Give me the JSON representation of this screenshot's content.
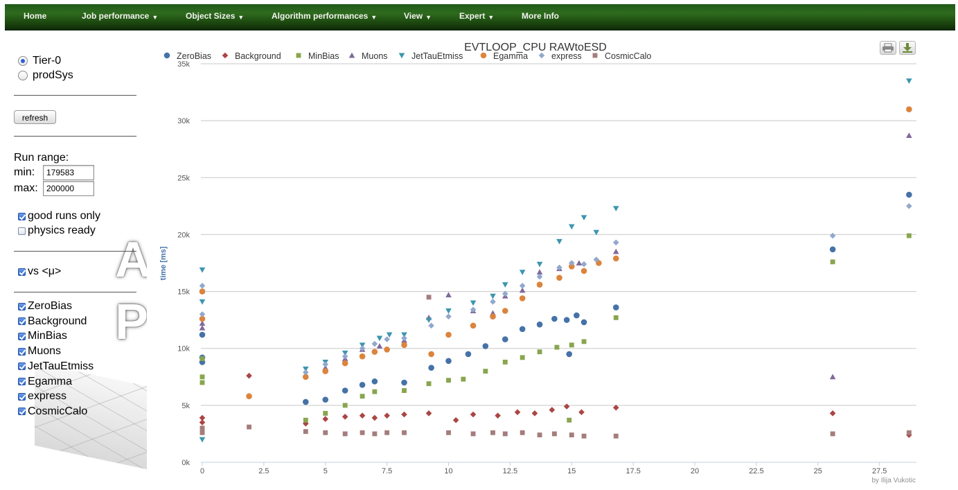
{
  "navbar": {
    "items": [
      {
        "label": "Home",
        "dropdown": false
      },
      {
        "label": "Job performance",
        "dropdown": true
      },
      {
        "label": "Object Sizes",
        "dropdown": true
      },
      {
        "label": "Algorithm performances",
        "dropdown": true
      },
      {
        "label": "View",
        "dropdown": true
      },
      {
        "label": "Expert",
        "dropdown": true
      },
      {
        "label": "More Info",
        "dropdown": false
      }
    ],
    "caret": "▼"
  },
  "sidebar": {
    "source_options": [
      {
        "label": "Tier-0",
        "checked": true
      },
      {
        "label": "prodSys",
        "checked": false
      }
    ],
    "refresh_label": "refresh",
    "run_range_label": "Run range:",
    "min_label": "min:",
    "max_label": "max:",
    "min_value": "179583",
    "max_value": "200000",
    "good_runs_label": "good runs only",
    "good_runs_checked": true,
    "physics_ready_label": "physics ready",
    "physics_ready_checked": false,
    "vs_mu_label": "vs <μ>",
    "vs_mu_checked": true,
    "streams": [
      {
        "label": "ZeroBias",
        "checked": true
      },
      {
        "label": "Background",
        "checked": true
      },
      {
        "label": "MinBias",
        "checked": true
      },
      {
        "label": "Muons",
        "checked": true
      },
      {
        "label": "JetTauEtmiss",
        "checked": true
      },
      {
        "label": "Egamma",
        "checked": true
      },
      {
        "label": "express",
        "checked": true
      },
      {
        "label": "CosmicCalo",
        "checked": true
      }
    ],
    "decor_letters": [
      "A",
      "P"
    ]
  },
  "export": {
    "print_icon": "printer-icon",
    "download_icon": "download-icon"
  },
  "chart_data": {
    "type": "scatter",
    "title": "EVTLOOP_CPU RAWtoESD",
    "xlabel": "",
    "ylabel": "time [ms]",
    "credit": "by Ilija Vukotic",
    "xlim": [
      0,
      29
    ],
    "ylim": [
      0,
      35000
    ],
    "x_ticks": [
      "0",
      "2.5",
      "5",
      "7.5",
      "10",
      "12.5",
      "15",
      "17.5",
      "20",
      "22.5",
      "25",
      "27.5"
    ],
    "y_ticks": [
      "0k",
      "5k",
      "10k",
      "15k",
      "20k",
      "25k",
      "30k",
      "35k"
    ],
    "grid": true,
    "legend_position": "top",
    "series": [
      {
        "name": "ZeroBias",
        "marker": "circle",
        "color": "#4572A7",
        "points": [
          [
            0,
            11200
          ],
          [
            0,
            9200
          ],
          [
            0,
            8800
          ],
          [
            4.2,
            5300
          ],
          [
            5,
            5500
          ],
          [
            5.8,
            6300
          ],
          [
            6.5,
            6800
          ],
          [
            7,
            7100
          ],
          [
            8.2,
            7000
          ],
          [
            9.3,
            8300
          ],
          [
            10,
            8900
          ],
          [
            10.8,
            9500
          ],
          [
            11.5,
            10200
          ],
          [
            12.3,
            10800
          ],
          [
            13,
            11700
          ],
          [
            13.7,
            12100
          ],
          [
            14.3,
            12600
          ],
          [
            14.8,
            12500
          ],
          [
            15.2,
            12900
          ],
          [
            15.5,
            12300
          ],
          [
            14.9,
            9500
          ],
          [
            16.8,
            13600
          ],
          [
            25.6,
            18700
          ],
          [
            28.7,
            23500
          ]
        ]
      },
      {
        "name": "Background",
        "marker": "diamond",
        "color": "#AA4643",
        "points": [
          [
            0,
            3500
          ],
          [
            0,
            3900
          ],
          [
            1.9,
            7600
          ],
          [
            4.2,
            3400
          ],
          [
            5,
            3800
          ],
          [
            5.8,
            4000
          ],
          [
            6.5,
            4100
          ],
          [
            7,
            3900
          ],
          [
            7.5,
            4100
          ],
          [
            8.2,
            4200
          ],
          [
            9.2,
            4300
          ],
          [
            10.3,
            3700
          ],
          [
            11,
            4200
          ],
          [
            12,
            4100
          ],
          [
            12.8,
            4400
          ],
          [
            13.5,
            4300
          ],
          [
            14.2,
            4600
          ],
          [
            14.8,
            4900
          ],
          [
            15.4,
            4400
          ],
          [
            16.8,
            4800
          ],
          [
            25.6,
            4300
          ],
          [
            28.7,
            2400
          ]
        ]
      },
      {
        "name": "MinBias",
        "marker": "square",
        "color": "#89A54E",
        "points": [
          [
            0,
            9100
          ],
          [
            0,
            7000
          ],
          [
            0,
            7500
          ],
          [
            4.2,
            3700
          ],
          [
            5,
            4300
          ],
          [
            5.8,
            5000
          ],
          [
            6.5,
            5800
          ],
          [
            7,
            6200
          ],
          [
            8.2,
            6300
          ],
          [
            9.2,
            6900
          ],
          [
            10,
            7200
          ],
          [
            10.6,
            7300
          ],
          [
            11.5,
            8000
          ],
          [
            12.3,
            8800
          ],
          [
            13,
            9200
          ],
          [
            13.7,
            9700
          ],
          [
            14.4,
            10100
          ],
          [
            15,
            10300
          ],
          [
            15.5,
            10600
          ],
          [
            14.9,
            3700
          ],
          [
            16.8,
            12700
          ],
          [
            25.6,
            17600
          ],
          [
            28.7,
            19900
          ]
        ]
      },
      {
        "name": "Muons",
        "marker": "triangle",
        "color": "#80699B",
        "points": [
          [
            0,
            12200
          ],
          [
            0,
            11800
          ],
          [
            4.2,
            7700
          ],
          [
            5,
            8300
          ],
          [
            5.8,
            9100
          ],
          [
            6.5,
            9900
          ],
          [
            7.2,
            10200
          ],
          [
            8.2,
            10700
          ],
          [
            9.2,
            12700
          ],
          [
            10,
            14700
          ],
          [
            11,
            13300
          ],
          [
            11.8,
            13100
          ],
          [
            12.3,
            14600
          ],
          [
            13,
            15100
          ],
          [
            13.7,
            16700
          ],
          [
            14.5,
            17000
          ],
          [
            15.3,
            17500
          ],
          [
            16.8,
            18500
          ],
          [
            25.6,
            7500
          ],
          [
            28.7,
            28700
          ]
        ]
      },
      {
        "name": "JetTauEtmiss",
        "marker": "triangle-down",
        "color": "#3D96AE",
        "points": [
          [
            0,
            16900
          ],
          [
            0,
            14100
          ],
          [
            0,
            2000
          ],
          [
            4.2,
            8200
          ],
          [
            5,
            8800
          ],
          [
            5.8,
            9600
          ],
          [
            6.5,
            10300
          ],
          [
            7.2,
            10900
          ],
          [
            7.6,
            11200
          ],
          [
            8.2,
            11200
          ],
          [
            9.2,
            12500
          ],
          [
            10,
            13300
          ],
          [
            11,
            14000
          ],
          [
            11.8,
            14600
          ],
          [
            12.3,
            15600
          ],
          [
            13,
            16700
          ],
          [
            13.7,
            17400
          ],
          [
            14.5,
            19400
          ],
          [
            15,
            20700
          ],
          [
            15.5,
            21500
          ],
          [
            16,
            20200
          ],
          [
            16.8,
            22300
          ],
          [
            28.7,
            33500
          ]
        ]
      },
      {
        "name": "Egamma",
        "marker": "circle",
        "color": "#DB843D",
        "points": [
          [
            0,
            15000
          ],
          [
            0,
            12600
          ],
          [
            1.9,
            5800
          ],
          [
            4.2,
            7500
          ],
          [
            5,
            8000
          ],
          [
            5.8,
            8700
          ],
          [
            6.5,
            9300
          ],
          [
            7,
            9700
          ],
          [
            7.5,
            9900
          ],
          [
            8.2,
            10300
          ],
          [
            9.3,
            9500
          ],
          [
            10,
            11200
          ],
          [
            11,
            12000
          ],
          [
            11.8,
            12800
          ],
          [
            12.3,
            13300
          ],
          [
            13,
            14400
          ],
          [
            13.7,
            15600
          ],
          [
            14.5,
            16200
          ],
          [
            15,
            17200
          ],
          [
            15.5,
            16800
          ],
          [
            16.1,
            17500
          ],
          [
            16.8,
            17900
          ],
          [
            28.7,
            31000
          ]
        ]
      },
      {
        "name": "express",
        "marker": "diamond",
        "color": "#92A8CD",
        "points": [
          [
            0,
            15500
          ],
          [
            0,
            13000
          ],
          [
            4.2,
            7900
          ],
          [
            5,
            8600
          ],
          [
            5.8,
            9300
          ],
          [
            6.5,
            10000
          ],
          [
            7,
            10400
          ],
          [
            7.5,
            10800
          ],
          [
            8.2,
            10900
          ],
          [
            9.3,
            12000
          ],
          [
            10,
            12800
          ],
          [
            11,
            13400
          ],
          [
            11.8,
            14100
          ],
          [
            12.3,
            14800
          ],
          [
            13,
            15500
          ],
          [
            13.7,
            16300
          ],
          [
            14.5,
            17100
          ],
          [
            15,
            17500
          ],
          [
            15.5,
            17400
          ],
          [
            16,
            17800
          ],
          [
            16.8,
            19300
          ],
          [
            25.6,
            19900
          ],
          [
            28.7,
            22500
          ]
        ]
      },
      {
        "name": "CosmicCalo",
        "marker": "square",
        "color": "#A47D7C",
        "points": [
          [
            0,
            2600
          ],
          [
            0,
            3000
          ],
          [
            1.9,
            3100
          ],
          [
            4.2,
            2700
          ],
          [
            5,
            2600
          ],
          [
            5.8,
            2500
          ],
          [
            6.5,
            2600
          ],
          [
            7,
            2500
          ],
          [
            7.5,
            2600
          ],
          [
            8.2,
            2600
          ],
          [
            9.2,
            14500
          ],
          [
            10,
            2600
          ],
          [
            11,
            2500
          ],
          [
            11.8,
            2600
          ],
          [
            12.3,
            2500
          ],
          [
            13,
            2600
          ],
          [
            13.7,
            2400
          ],
          [
            14.3,
            2500
          ],
          [
            15,
            2400
          ],
          [
            15.5,
            2300
          ],
          [
            16.8,
            2300
          ],
          [
            25.6,
            2500
          ],
          [
            28.7,
            2600
          ]
        ]
      }
    ]
  }
}
